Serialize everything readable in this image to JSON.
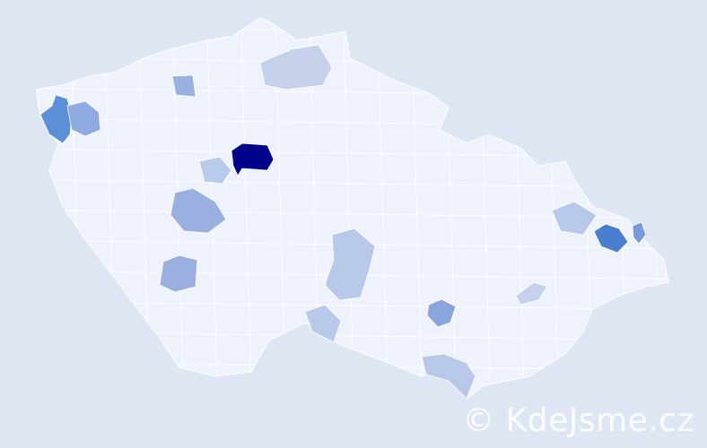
{
  "map": {
    "background_color": "#dde6f2",
    "base_region_color": "#eef2fb",
    "border_color": "#ffffff",
    "scale_colors": [
      "#eef2fb",
      "#d6deef",
      "#b8c8e8",
      "#8eaae0",
      "#5b8fd8",
      "#00008b"
    ],
    "highlighted_regions": [
      {
        "id": "prague-region",
        "color": "#00008b"
      },
      {
        "id": "northwest-region",
        "color": "#5b8fd8"
      },
      {
        "id": "northwest-adjacent",
        "color": "#8eaae0"
      },
      {
        "id": "northeast-region",
        "color": "#4a7fd0"
      },
      {
        "id": "northeast-small",
        "color": "#7a9ad8"
      },
      {
        "id": "central-west",
        "color": "#9ab0e0"
      },
      {
        "id": "south-west",
        "color": "#9ab0e0"
      },
      {
        "id": "central-highlands",
        "color": "#b8c8e8"
      },
      {
        "id": "south-moravia",
        "color": "#8aa5dc"
      },
      {
        "id": "near-prague-west",
        "color": "#b8cbeb"
      },
      {
        "id": "north-central",
        "color": "#c5d0ea"
      },
      {
        "id": "north-small",
        "color": "#9ab0e0"
      },
      {
        "id": "south-border",
        "color": "#b8c8e8"
      },
      {
        "id": "south-moravia-border",
        "color": "#b8c8e8"
      },
      {
        "id": "east-moravia",
        "color": "#c5d0ea"
      },
      {
        "id": "east-central",
        "color": "#b8c8e8"
      }
    ]
  },
  "watermark": {
    "text": "© KdeJsme.cz"
  }
}
